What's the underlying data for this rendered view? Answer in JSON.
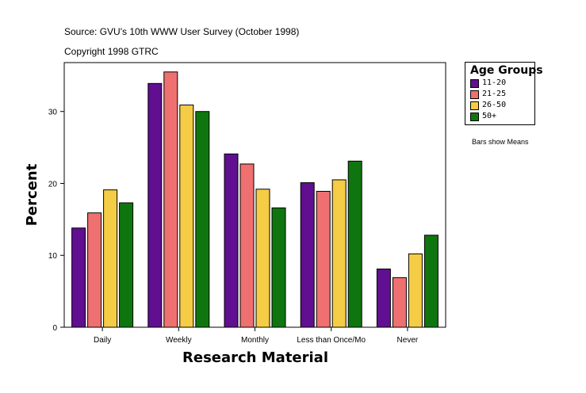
{
  "header": {
    "source": "Source: GVU's 10th WWW User Survey (October 1998)",
    "copyright": "Copyright 1998 GTRC"
  },
  "legend": {
    "title": "Age Groups",
    "items": [
      {
        "label": "11-20",
        "color": "#5f0f8f"
      },
      {
        "label": "21-25",
        "color": "#ef7070"
      },
      {
        "label": "26-50",
        "color": "#f5cc45"
      },
      {
        "label": "50+",
        "color": "#0f760f"
      }
    ]
  },
  "note": "Bars show Means",
  "chart_data": {
    "type": "bar",
    "title": "",
    "xlabel": "Research Material",
    "ylabel": "Percent",
    "categories": [
      "Daily",
      "Weekly",
      "Monthly",
      "Less than Once/Mo",
      "Never"
    ],
    "series": [
      {
        "name": "11-20",
        "values": [
          13.8,
          33.9,
          24.1,
          20.1,
          8.1
        ]
      },
      {
        "name": "21-25",
        "values": [
          15.9,
          35.5,
          22.7,
          18.9,
          6.9
        ]
      },
      {
        "name": "26-50",
        "values": [
          19.1,
          30.9,
          19.2,
          20.5,
          10.2
        ]
      },
      {
        "name": "50+",
        "values": [
          17.3,
          30.0,
          16.6,
          23.1,
          12.8
        ]
      }
    ],
    "ylim": [
      0,
      36.8
    ],
    "yticks": [
      0,
      10,
      20,
      30
    ],
    "grid": false,
    "legend_position": "right"
  }
}
